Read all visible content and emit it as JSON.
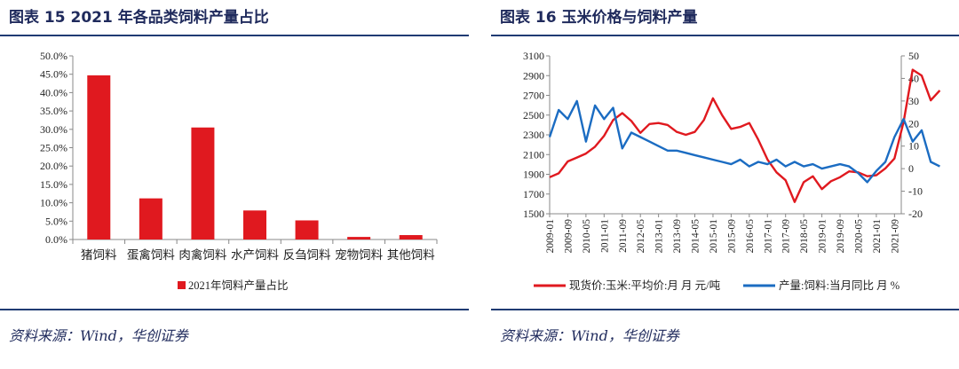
{
  "panels": [
    {
      "title": "图表 15   2021 年各品类饲料产量占比",
      "source": "资料来源：Wind，华创证券"
    },
    {
      "title": "图表 16   玉米价格与饲料产量",
      "source": "资料来源：Wind，华创证券"
    }
  ],
  "colors": {
    "red": "#e0191f",
    "blue": "#1b6cc2",
    "rule": "#1f3b73"
  },
  "chart_data": [
    {
      "type": "bar",
      "title": "",
      "categories": [
        "猪饲料",
        "蛋禽饲料",
        "肉禽饲料",
        "水产饲料",
        "反刍饲料",
        "宠物饲料",
        "其他饲料"
      ],
      "series": [
        {
          "name": "2021年饲料产量占比",
          "values": [
            44.7,
            11.2,
            30.5,
            7.9,
            5.2,
            0.7,
            1.2
          ]
        }
      ],
      "ylim": [
        0,
        50
      ],
      "yticks": [
        "0.0%",
        "5.0%",
        "10.0%",
        "15.0%",
        "20.0%",
        "25.0%",
        "30.0%",
        "35.0%",
        "40.0%",
        "45.0%",
        "50.0%"
      ],
      "legend": "bottom",
      "grid": false
    },
    {
      "type": "line",
      "title": "",
      "xticks": [
        "2009-01",
        "2009-09",
        "2010-05",
        "2011-01",
        "2011-09",
        "2012-05",
        "2013-01",
        "2013-09",
        "2014-05",
        "2015-01",
        "2015-09",
        "2016-05",
        "2017-01",
        "2017-09",
        "2018-05",
        "2019-01",
        "2019-09",
        "2020-05",
        "2021-01",
        "2021-09"
      ],
      "ylim_left": [
        1500,
        3100
      ],
      "yticks_left": [
        "1500",
        "1700",
        "1900",
        "2100",
        "2300",
        "2500",
        "2700",
        "2900",
        "3100"
      ],
      "ylim_right": [
        -20,
        50
      ],
      "yticks_right": [
        "-20",
        "-10",
        "0",
        "10",
        "20",
        "30",
        "40",
        "50"
      ],
      "legend": "bottom",
      "series": [
        {
          "name": "现货价:玉米:平均价:月 月 元/吨",
          "axis": "left",
          "x_start": "2009-01",
          "x_step_months": 4,
          "values": [
            1870,
            1910,
            2030,
            2070,
            2110,
            2180,
            2290,
            2450,
            2520,
            2440,
            2320,
            2410,
            2420,
            2400,
            2330,
            2300,
            2330,
            2450,
            2670,
            2500,
            2360,
            2380,
            2420,
            2250,
            2050,
            1920,
            1840,
            1620,
            1820,
            1880,
            1750,
            1830,
            1870,
            1930,
            1920,
            1880,
            1890,
            1960,
            2060,
            2430,
            2960,
            2900,
            2650,
            2750
          ]
        },
        {
          "name": "产量:饲料:当月同比 月 %",
          "axis": "right",
          "x_start": "2009-01",
          "x_step_months": 4,
          "values": [
            14,
            26,
            22,
            30,
            12,
            28,
            22,
            27,
            9,
            16,
            14,
            12,
            10,
            8,
            8,
            7,
            6,
            5,
            4,
            3,
            2,
            4,
            1,
            3,
            2,
            4,
            1,
            3,
            1,
            2,
            0,
            1,
            2,
            1,
            -2,
            -6,
            -1,
            3,
            14,
            22,
            12,
            17,
            3,
            1
          ]
        }
      ]
    }
  ]
}
